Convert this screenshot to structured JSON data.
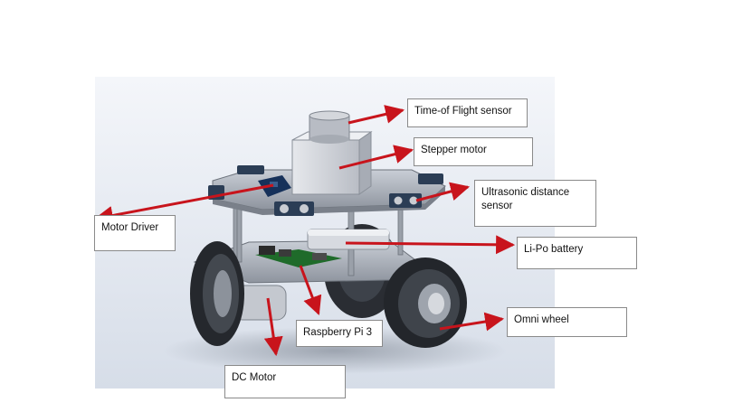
{
  "labels": {
    "tof": "Time-of Flight sensor",
    "stepper": "Stepper motor",
    "ultrasonic": "Ultrasonic distance sensor",
    "motor_driver": "Motor Driver",
    "lipo": "Li-Po battery",
    "omni": "Omni wheel",
    "rpi": "Raspberry Pi 3",
    "dc_motor": "DC Motor"
  },
  "colors": {
    "arrow": "#c8141c",
    "render_bg": "#dde3ec",
    "box_border": "#8a8a8a"
  }
}
